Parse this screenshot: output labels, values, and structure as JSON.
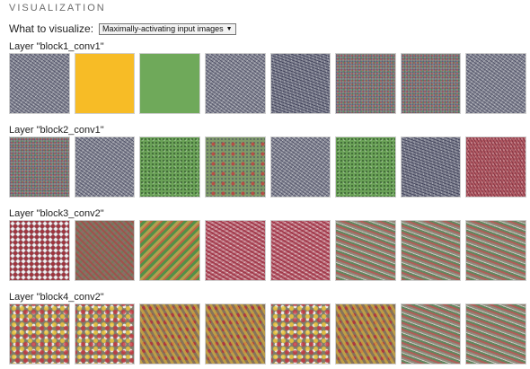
{
  "section": {
    "title": "VISUALIZATION"
  },
  "controls": {
    "label": "What to visualize:",
    "select_value": "Maximally-activating input images"
  },
  "layers": [
    {
      "title": "Layer \"block1_conv1\"",
      "tiles": [
        "t-gray",
        "t-yellow",
        "t-green",
        "t-gray",
        "t-gray2",
        "t-noise",
        "t-noise",
        "t-gray"
      ]
    },
    {
      "title": "Layer \"block2_conv1\"",
      "tiles": [
        "t-noise",
        "t-gray",
        "t-green-noise",
        "t-green-spots",
        "t-gray",
        "t-green-noise",
        "t-gray2",
        "t-red"
      ]
    },
    {
      "title": "Layer \"block3_conv2\"",
      "tiles": [
        "t-swirl-a",
        "t-swirl-b",
        "t-diag-green",
        "t-wave-red",
        "t-wave-red",
        "t-wave-multi",
        "t-wave-multi",
        "t-wave-multi"
      ]
    },
    {
      "title": "Layer \"block4_conv2\"",
      "tiles": [
        "t-blob",
        "t-blob",
        "t-blob2",
        "t-blob2",
        "t-blob",
        "t-blob2",
        "t-wave-multi",
        "t-wave-multi"
      ]
    }
  ]
}
